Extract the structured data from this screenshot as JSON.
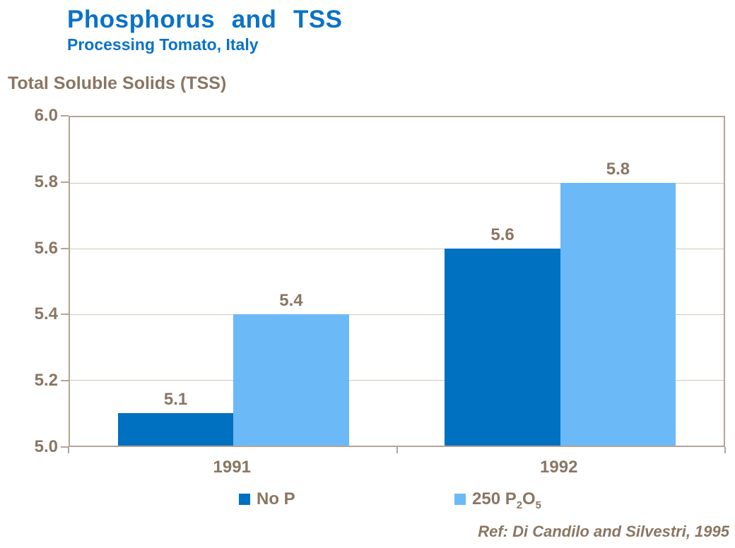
{
  "header": {
    "title": "Phosphorus and TSS",
    "subtitle": "Processing Tomato, Italy"
  },
  "axis_title": "Total Soluble Solids (TSS)",
  "footer": {
    "reference": "Ref: Di Candilo and Silvestri, 1995"
  },
  "legend": {
    "items": [
      {
        "label": "No P",
        "parts": [
          "No P"
        ]
      },
      {
        "label": "250 P₂O₅",
        "parts": [
          "250 P",
          "2",
          "O",
          "5"
        ]
      }
    ]
  },
  "colors": {
    "title_blue": "#0a72c8",
    "dark_bar_blue": "#0070c0",
    "light_bar_blue": "#6cb9f7",
    "text_brown": "#8a7663",
    "axis_border": "#b3a596",
    "gridline": "#d0c7bb",
    "background": "#ffffff"
  },
  "chart_data": {
    "type": "bar",
    "title": "Phosphorus and TSS",
    "subtitle": "Processing Tomato, Italy",
    "ylabel": "Total Soluble Solids (TSS)",
    "xlabel": "",
    "categories": [
      "1991",
      "1992"
    ],
    "series": [
      {
        "name": "No P",
        "key": "no-p",
        "color": "#0070c0",
        "values": [
          5.1,
          5.6
        ]
      },
      {
        "name": "250 P₂O₅",
        "key": "250-p2o5",
        "color": "#6cb9f7",
        "values": [
          5.4,
          5.8
        ]
      }
    ],
    "ylim": [
      5.0,
      6.0
    ],
    "ytick_step": 0.2,
    "yticks": [
      6.0,
      5.8,
      5.6,
      5.4,
      5.2,
      5.0
    ],
    "grid": true,
    "value_labels_shown": true,
    "legend_position": "bottom",
    "reference": "Ref: Di Candilo and Silvestri, 1995"
  }
}
